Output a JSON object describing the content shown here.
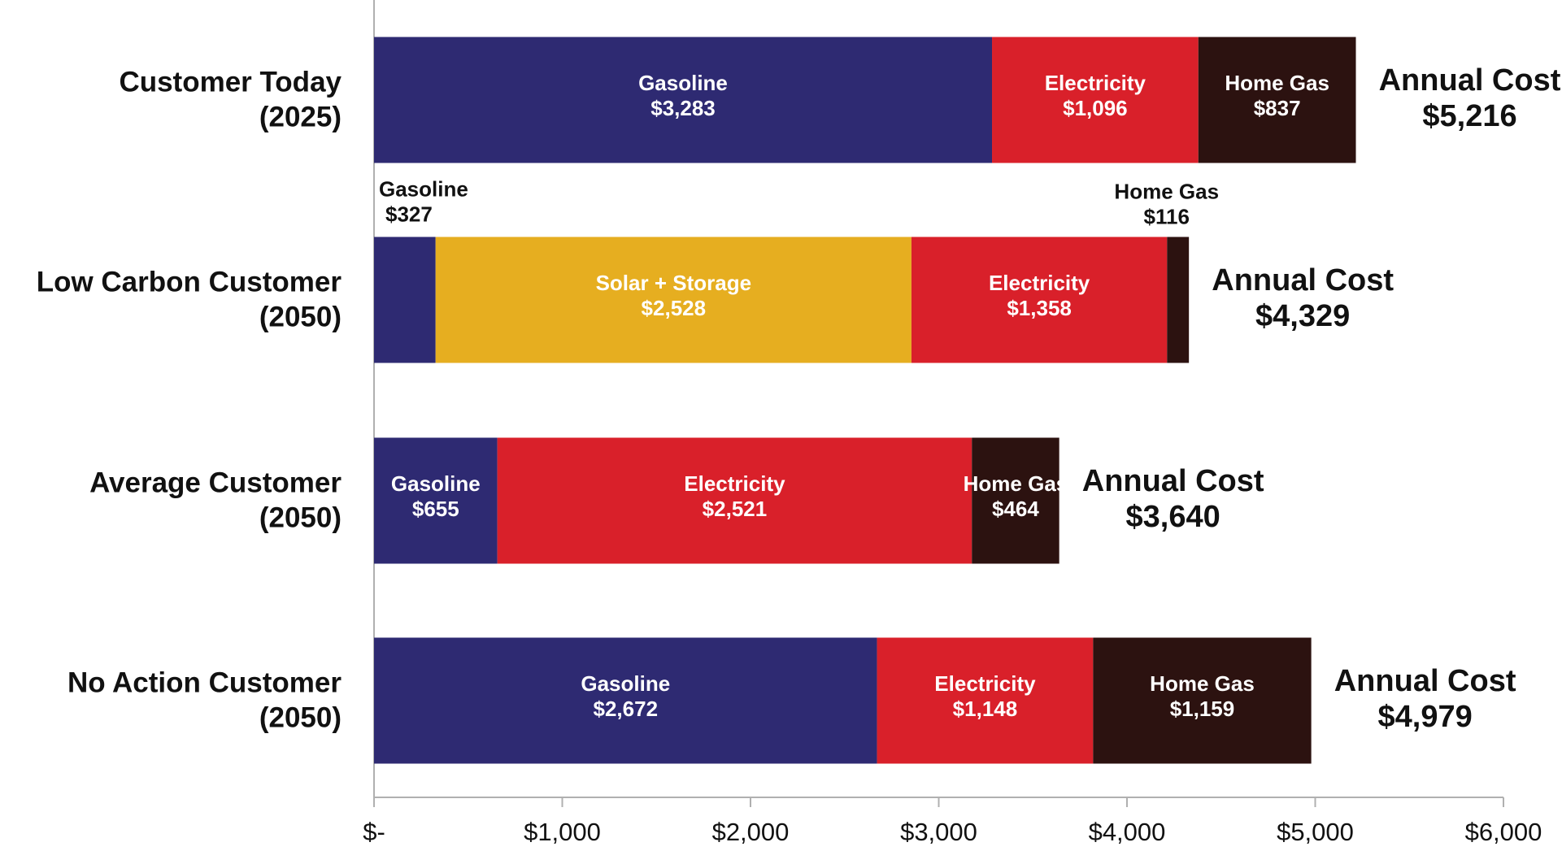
{
  "chart_data": {
    "type": "stacked-barh",
    "categories": [
      "Customer Today\n(2025)",
      "Low Carbon Customer\n(2050)",
      "Average Customer\n(2050)",
      "No Action Customer\n(2050)"
    ],
    "series": [
      {
        "name": "Gasoline",
        "color": "#2e2a72",
        "values": [
          3283,
          327,
          655,
          2672
        ],
        "value_labels": [
          "$3,283",
          "$327",
          "$655",
          "$2,672"
        ]
      },
      {
        "name": "Solar + Storage",
        "color": "#e6ae20",
        "values": [
          null,
          2528,
          null,
          null
        ],
        "value_labels": [
          null,
          "$2,528",
          null,
          null
        ]
      },
      {
        "name": "Electricity",
        "color": "#d9202a",
        "values": [
          1096,
          1358,
          2521,
          1148
        ],
        "value_labels": [
          "$1,096",
          "$1,358",
          "$2,521",
          "$1,148"
        ]
      },
      {
        "name": "Home Gas",
        "color": "#2c1210",
        "values": [
          837,
          116,
          464,
          1159
        ],
        "value_labels": [
          "$837",
          "$116",
          "$464",
          "$1,159"
        ]
      }
    ],
    "total_title": "Annual Cost",
    "totals": [
      5216,
      4329,
      3640,
      4979
    ],
    "total_labels": [
      "$5,216",
      "$4,329",
      "$3,640",
      "$4,979"
    ],
    "xlim": [
      0,
      6000
    ],
    "xticks": [
      {
        "value": 0,
        "label": "$-"
      },
      {
        "value": 1000,
        "label": "$1,000"
      },
      {
        "value": 2000,
        "label": "$2,000"
      },
      {
        "value": 3000,
        "label": "$3,000"
      },
      {
        "value": 4000,
        "label": "$4,000"
      },
      {
        "value": 5000,
        "label": "$5,000"
      },
      {
        "value": 6000,
        "label": "$6,000"
      }
    ],
    "grid": false
  }
}
